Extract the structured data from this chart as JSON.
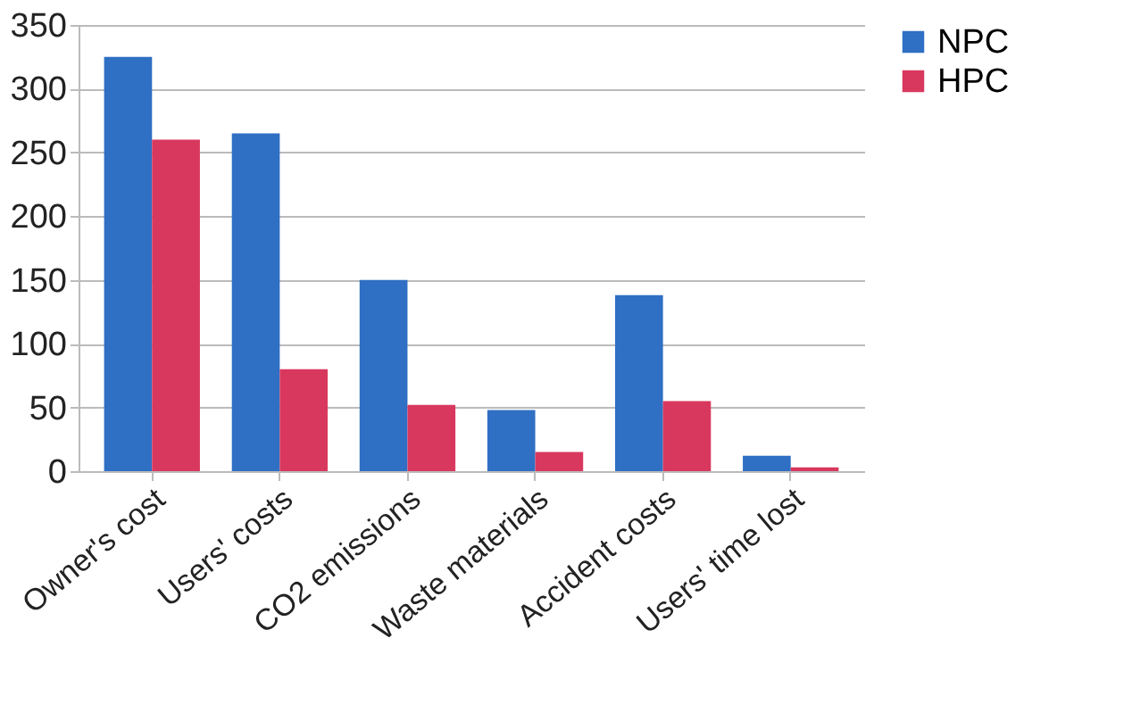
{
  "chart_data": {
    "type": "bar",
    "categories": [
      "Owner's cost",
      "Users' costs",
      "CO2 emissions",
      "Waste materials",
      "Accident costs",
      "Users' time lost"
    ],
    "series": [
      {
        "name": "NPC",
        "color": "#2f6fc4",
        "values": [
          325,
          265,
          150,
          48,
          138,
          12
        ]
      },
      {
        "name": "HPC",
        "color": "#d9385e",
        "values": [
          260,
          80,
          52,
          15,
          55,
          3
        ]
      }
    ],
    "ylim": [
      0,
      350
    ],
    "yticks": [
      0,
      50,
      100,
      150,
      200,
      250,
      300,
      350
    ],
    "grid": "y",
    "legend": "right"
  }
}
